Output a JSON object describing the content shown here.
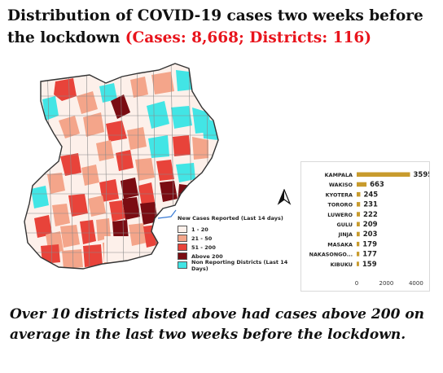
{
  "title": {
    "main": "Distribution of COVID-19 cases two weeks before the lockdown",
    "highlight": "(Cases: 8,668; Districts: 116)"
  },
  "legend": {
    "title": "New Cases Reported (Last 14 days)",
    "items": [
      {
        "label": "1 - 20",
        "color": "#fdf0ea"
      },
      {
        "label": "21 - 50",
        "color": "#f4a58a"
      },
      {
        "label": "51 - 200",
        "color": "#e8433a"
      },
      {
        "label": "Above 200",
        "color": "#7a0c12"
      },
      {
        "label": "Non Reporting Districts (Last 14 Days)",
        "color": "#42e5e5"
      }
    ]
  },
  "chart_data": {
    "type": "bar",
    "orientation": "horizontal",
    "categories": [
      "KAMPALA",
      "WAKISO",
      "KYOTERA",
      "TORORO",
      "LUWERO",
      "GULU",
      "JINJA",
      "MASAKA",
      "NAKASONGO...",
      "KIBUKU"
    ],
    "values": [
      3595,
      663,
      245,
      231,
      222,
      209,
      203,
      179,
      177,
      159
    ],
    "xticks": [
      0,
      2000,
      4000
    ],
    "xlim": [
      0,
      4500
    ],
    "bar_color": "#c89b2d"
  },
  "footer": {
    "text": "Over 10 districts listed above had cases above 200 on average in the last two weeks before the lockdown."
  }
}
